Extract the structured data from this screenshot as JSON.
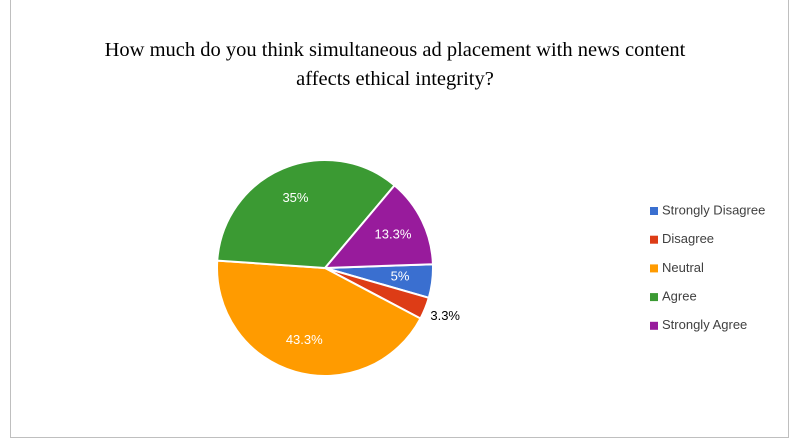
{
  "chart_data": {
    "type": "pie",
    "title": "How much do you think simultaneous ad placement with news content affects ethical integrity?",
    "categories": [
      "Strongly Disagree",
      "Disagree",
      "Neutral",
      "Agree",
      "Strongly Agree"
    ],
    "values": [
      5,
      3.3,
      43.3,
      35,
      13.3
    ],
    "value_labels": [
      "5%",
      "3.3%",
      "43.3%",
      "35%",
      "13.3%"
    ],
    "colors": [
      "#3a6fd0",
      "#dd3c16",
      "#ff9b00",
      "#3b9a33",
      "#981b9c"
    ],
    "legend": "right"
  }
}
